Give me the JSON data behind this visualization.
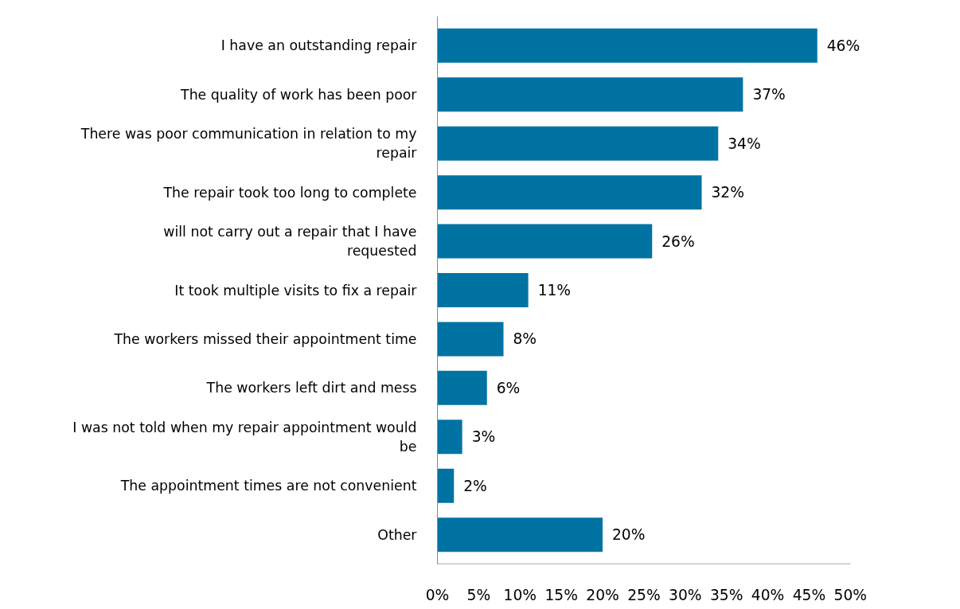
{
  "chart_data": {
    "type": "bar",
    "orientation": "horizontal",
    "categories": [
      "I have an outstanding repair",
      "The quality of work has been poor",
      "There was poor communication in relation to my repair",
      "The repair took too long to complete",
      "will not carry out a repair that I have requested",
      "It took multiple visits to fix a repair",
      "The workers missed their appointment time",
      "The workers left dirt and mess",
      "I was not told when my repair appointment would be",
      "The appointment times are not convenient",
      "Other"
    ],
    "values": [
      46,
      37,
      34,
      32,
      26,
      11,
      8,
      6,
      3,
      2,
      20
    ],
    "value_labels": [
      "46%",
      "37%",
      "34%",
      "32%",
      "26%",
      "11%",
      "8%",
      "6%",
      "3%",
      "2%",
      "20%"
    ],
    "color": "#0073a3",
    "xlim": [
      0,
      50
    ],
    "xticks": [
      {
        "value": 0,
        "label": "0%"
      },
      {
        "value": 5,
        "label": "5%"
      },
      {
        "value": 10,
        "label": "10%"
      },
      {
        "value": 15,
        "label": "15%"
      },
      {
        "value": 20,
        "label": "20%"
      },
      {
        "value": 25,
        "label": "25%"
      },
      {
        "value": 30,
        "label": "30%"
      },
      {
        "value": 35,
        "label": "35%"
      },
      {
        "value": 40,
        "label": "40%"
      },
      {
        "value": 45,
        "label": "45%"
      },
      {
        "value": 50,
        "label": "50%"
      }
    ],
    "grid": false
  }
}
